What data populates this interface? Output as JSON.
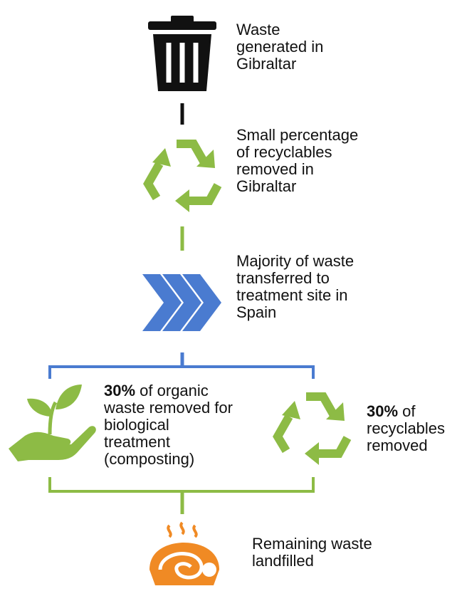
{
  "steps": [
    {
      "label": "Waste generated in Gibraltar"
    },
    {
      "label": "Small percentage of recyclables removed in Gibraltar"
    },
    {
      "label": "Majority of waste transferred to treatment site in Spain"
    },
    {
      "emphasis": "30%",
      "label": "of organic waste removed for biological treatment (composting)"
    },
    {
      "emphasis": "30%",
      "label": "of recyclables removed"
    },
    {
      "label": "Remaining waste landfilled"
    }
  ]
}
